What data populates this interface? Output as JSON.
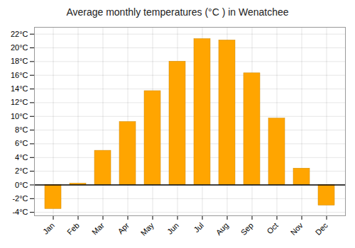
{
  "chart_data": {
    "type": "bar",
    "title": "Average monthly temperatures (°C ) in Wenatchee",
    "categories": [
      "Jan",
      "Feb",
      "Mar",
      "Apr",
      "May",
      "Jun",
      "Jul",
      "Aug",
      "Sep",
      "Oct",
      "Nov",
      "Dec"
    ],
    "values": [
      -3.5,
      0.2,
      5.0,
      9.2,
      13.7,
      18.0,
      21.3,
      21.1,
      16.3,
      9.7,
      2.4,
      -3.0
    ],
    "color": "#FFA500",
    "ylim": [
      -4.5,
      23
    ],
    "yticks": [
      {
        "value": -4,
        "label": "-4°C"
      },
      {
        "value": -2,
        "label": "-2°C"
      },
      {
        "value": 0,
        "label": "0°C"
      },
      {
        "value": 2,
        "label": "2°C"
      },
      {
        "value": 4,
        "label": "4°C"
      },
      {
        "value": 6,
        "label": "6°C"
      },
      {
        "value": 8,
        "label": "8°C"
      },
      {
        "value": 10,
        "label": "10°C"
      },
      {
        "value": 12,
        "label": "12°C"
      },
      {
        "value": 14,
        "label": "14°C"
      },
      {
        "value": 16,
        "label": "16°C"
      },
      {
        "value": 18,
        "label": "18°C"
      },
      {
        "value": 20,
        "label": "20°C"
      },
      {
        "value": 22,
        "label": "22°C"
      }
    ],
    "grid": true
  }
}
